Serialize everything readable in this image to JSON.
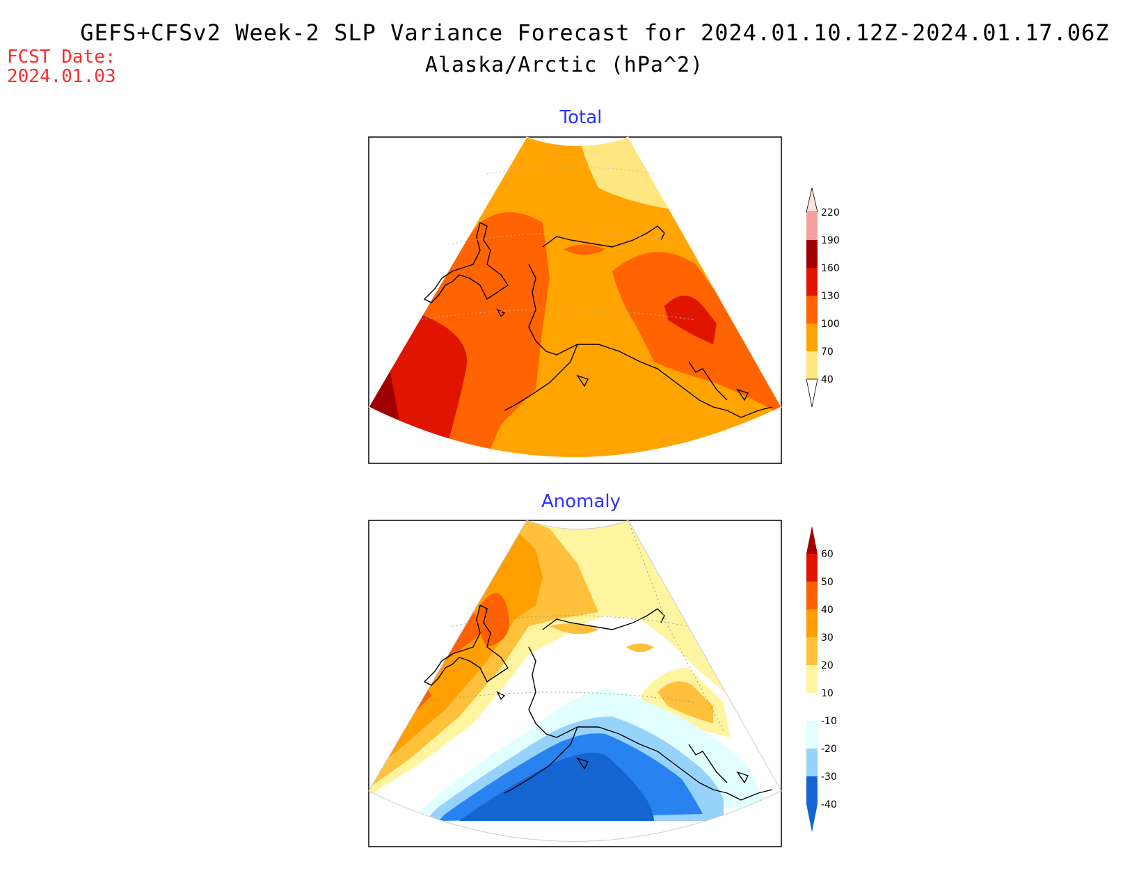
{
  "header": {
    "title_line1": "GEFS+CFSv2 Week-2 SLP Variance Forecast for 2024.01.10.12Z-2024.01.17.06Z",
    "title_line2": "Alaska/Arctic (hPa^2)",
    "fcst_label": "FCST Date:",
    "fcst_date": "2024.01.03"
  },
  "panels": {
    "total": {
      "title": "Total",
      "colorbar": {
        "labels": [
          "40",
          "70",
          "100",
          "130",
          "160",
          "190",
          "220"
        ],
        "colors": [
          "#ffe680",
          "#ffa400",
          "#ff6400",
          "#e01500",
          "#a00000",
          "#f4a0a0",
          "#ffe0e0"
        ]
      }
    },
    "anomaly": {
      "title": "Anomaly",
      "colorbar": {
        "labels": [
          "-40",
          "-30",
          "-20",
          "-10",
          "10",
          "20",
          "30",
          "40",
          "50",
          "60"
        ],
        "colors": [
          "#1464d2",
          "#2882f0",
          "#96d2fa",
          "#e1ffff",
          "#ffffff",
          "#fff5a0",
          "#ffc03c",
          "#ffa000",
          "#ff6000",
          "#e11400",
          "#a50000"
        ]
      }
    }
  }
}
